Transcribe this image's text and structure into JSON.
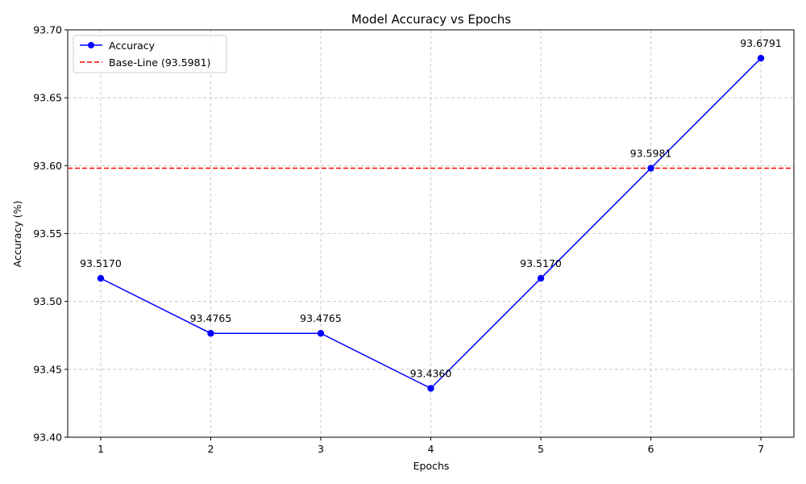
{
  "chart_data": {
    "type": "line",
    "title": "Model Accuracy vs Epochs",
    "xlabel": "Epochs",
    "ylabel": "Accuracy (%)",
    "x": [
      1,
      2,
      3,
      4,
      5,
      6,
      7
    ],
    "series": [
      {
        "name": "Accuracy",
        "values": [
          93.517,
          93.4765,
          93.4765,
          93.436,
          93.517,
          93.5981,
          93.6791
        ],
        "labels": [
          "93.5170",
          "93.4765",
          "93.4765",
          "93.4360",
          "93.5170",
          "93.5981",
          "93.6791"
        ],
        "color": "#0000ff",
        "marker": "circle"
      }
    ],
    "baseline": {
      "name": "Base-Line (93.5981)",
      "value": 93.5981,
      "color": "#ff0000",
      "style": "dashed"
    },
    "xlim": [
      0.7,
      7.3
    ],
    "ylim": [
      93.4,
      93.7
    ],
    "xticks": [
      "1",
      "2",
      "3",
      "4",
      "5",
      "6",
      "7"
    ],
    "yticks": [
      "93.40",
      "93.45",
      "93.50",
      "93.55",
      "93.60",
      "93.65",
      "93.70"
    ],
    "grid": true,
    "legend_position": "top-left"
  }
}
